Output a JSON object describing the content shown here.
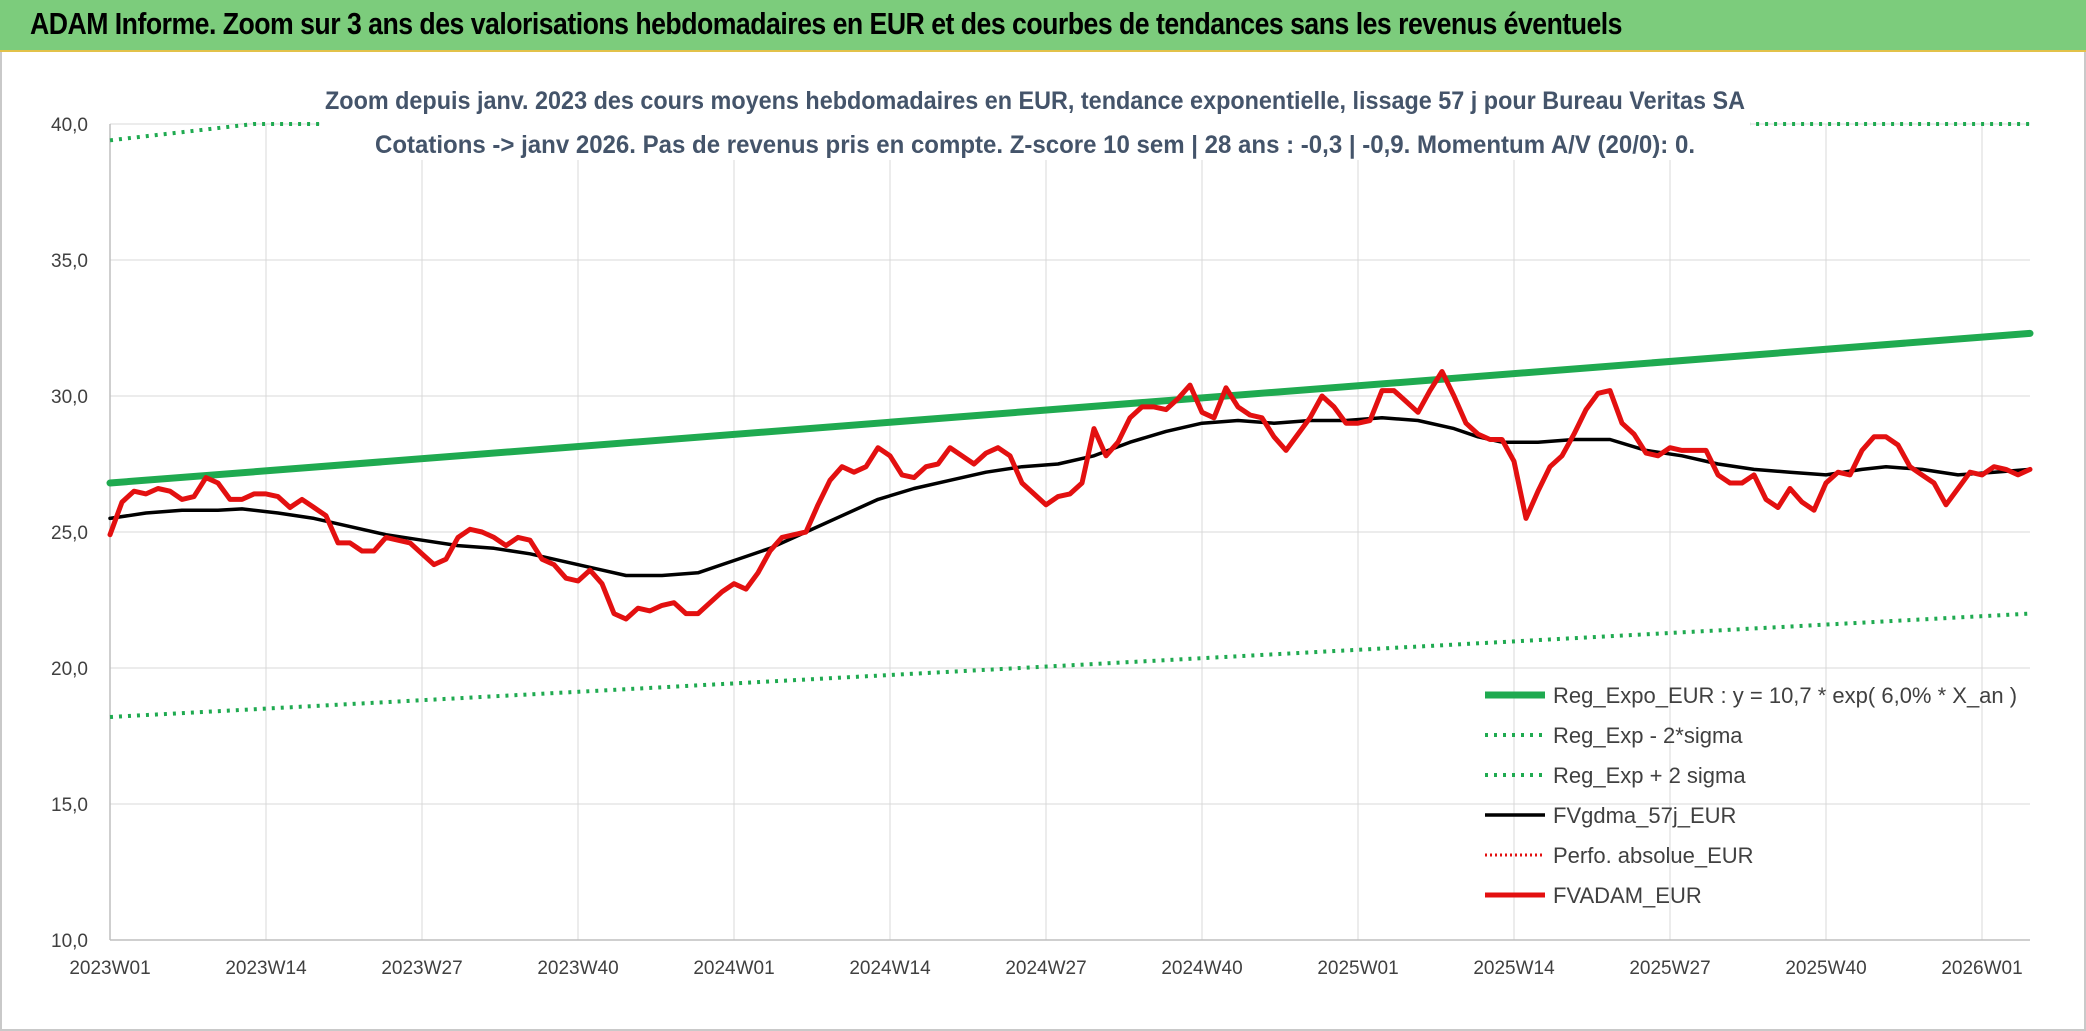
{
  "banner": {
    "title": "ADAM Informe. Zoom sur 3 ans des valorisations hebdomadaires en EUR et des courbes de tendances sans les revenus éventuels"
  },
  "colors": {
    "trend": "#1faa50",
    "band": "#1faa50",
    "smooth": "#000000",
    "perf": "#e31010",
    "price": "#e31010",
    "banner": "#7ccc7c",
    "grid": "#d9d9d9"
  },
  "chart_data": {
    "type": "line",
    "subtitle_lines": [
      "Zoom depuis janv. 2023 des cours moyens hebdomadaires en EUR, tendance exponentielle, lissage 57 j pour Bureau Veritas SA",
      "Cotations -> janv 2026. Pas de revenus pris en compte. Z-score 10 sem | 28 ans : -0,3 | -0,9. Momentum A/V (20/0): 0."
    ],
    "ylim": [
      10,
      40
    ],
    "yticks": [
      "10,0",
      "15,0",
      "20,0",
      "25,0",
      "30,0",
      "35,0",
      "40,0"
    ],
    "ytick_values": [
      10,
      15,
      20,
      25,
      30,
      35,
      40
    ],
    "n_weeks": 160,
    "xticks": [
      {
        "label": "2023W01",
        "week": 0
      },
      {
        "label": "2023W14",
        "week": 13
      },
      {
        "label": "2023W27",
        "week": 26
      },
      {
        "label": "2023W40",
        "week": 39
      },
      {
        "label": "2024W01",
        "week": 52
      },
      {
        "label": "2024W14",
        "week": 65
      },
      {
        "label": "2024W27",
        "week": 78
      },
      {
        "label": "2024W40",
        "week": 91
      },
      {
        "label": "2025W01",
        "week": 104
      },
      {
        "label": "2025W14",
        "week": 117
      },
      {
        "label": "2025W27",
        "week": 130
      },
      {
        "label": "2025W40",
        "week": 143
      },
      {
        "label": "2026W01",
        "week": 156
      }
    ],
    "grid": true,
    "legend_position": "bottom-right",
    "series": [
      {
        "key": "trend",
        "name": "Reg_Expo_EUR : y = 10,7 * exp( 6,0% *  X_an )",
        "style": "solid-thick",
        "points": [
          [
            0,
            26.8
          ],
          [
            160,
            32.3
          ]
        ]
      },
      {
        "key": "lower",
        "name": "Reg_Exp - 2*sigma",
        "style": "dotted",
        "points": [
          [
            0,
            18.2
          ],
          [
            160,
            22.0
          ]
        ]
      },
      {
        "key": "upper",
        "name": "Reg_Exp + 2 sigma",
        "style": "dotted",
        "points": [
          [
            0,
            39.4
          ],
          [
            12,
            40.0
          ],
          [
            17,
            40.0
          ],
          [
            139,
            40.0
          ],
          [
            160,
            40.0
          ]
        ]
      },
      {
        "key": "smooth",
        "name": "FVgdma_57j_EUR",
        "style": "solid",
        "points": [
          [
            0,
            25.5
          ],
          [
            3,
            25.7
          ],
          [
            6,
            25.8
          ],
          [
            9,
            25.8
          ],
          [
            11,
            25.85
          ],
          [
            14,
            25.7
          ],
          [
            17,
            25.5
          ],
          [
            20,
            25.2
          ],
          [
            23,
            24.9
          ],
          [
            26,
            24.7
          ],
          [
            29,
            24.5
          ],
          [
            32,
            24.4
          ],
          [
            35,
            24.2
          ],
          [
            38,
            23.9
          ],
          [
            41,
            23.6
          ],
          [
            43,
            23.4
          ],
          [
            46,
            23.4
          ],
          [
            49,
            23.5
          ],
          [
            51,
            23.8
          ],
          [
            53,
            24.1
          ],
          [
            55,
            24.4
          ],
          [
            58,
            25.0
          ],
          [
            61,
            25.6
          ],
          [
            64,
            26.2
          ],
          [
            67,
            26.6
          ],
          [
            70,
            26.9
          ],
          [
            73,
            27.2
          ],
          [
            76,
            27.4
          ],
          [
            79,
            27.5
          ],
          [
            82,
            27.8
          ],
          [
            85,
            28.3
          ],
          [
            88,
            28.7
          ],
          [
            91,
            29.0
          ],
          [
            94,
            29.1
          ],
          [
            97,
            29.0
          ],
          [
            100,
            29.1
          ],
          [
            103,
            29.1
          ],
          [
            106,
            29.2
          ],
          [
            109,
            29.1
          ],
          [
            112,
            28.8
          ],
          [
            114,
            28.5
          ],
          [
            116,
            28.3
          ],
          [
            119,
            28.3
          ],
          [
            122,
            28.4
          ],
          [
            125,
            28.4
          ],
          [
            128,
            28.0
          ],
          [
            131,
            27.8
          ],
          [
            134,
            27.5
          ],
          [
            137,
            27.3
          ],
          [
            140,
            27.2
          ],
          [
            143,
            27.1
          ],
          [
            146,
            27.3
          ],
          [
            148,
            27.4
          ],
          [
            151,
            27.3
          ],
          [
            154,
            27.1
          ],
          [
            157,
            27.2
          ],
          [
            160,
            27.3
          ]
        ]
      },
      {
        "key": "perf",
        "name": "Perfo. absolue_EUR",
        "style": "dotted-red",
        "points": []
      },
      {
        "key": "price",
        "name": "FVADAM_EUR",
        "style": "solid-thick",
        "points": [
          [
            0,
            24.9
          ],
          [
            1,
            26.1
          ],
          [
            2,
            26.5
          ],
          [
            3,
            26.4
          ],
          [
            4,
            26.6
          ],
          [
            5,
            26.5
          ],
          [
            6,
            26.2
          ],
          [
            7,
            26.3
          ],
          [
            8,
            27.0
          ],
          [
            9,
            26.8
          ],
          [
            10,
            26.2
          ],
          [
            11,
            26.2
          ],
          [
            12,
            26.4
          ],
          [
            13,
            26.4
          ],
          [
            14,
            26.3
          ],
          [
            15,
            25.9
          ],
          [
            16,
            26.2
          ],
          [
            17,
            25.9
          ],
          [
            18,
            25.6
          ],
          [
            19,
            24.6
          ],
          [
            20,
            24.6
          ],
          [
            21,
            24.3
          ],
          [
            22,
            24.3
          ],
          [
            23,
            24.8
          ],
          [
            24,
            24.7
          ],
          [
            25,
            24.6
          ],
          [
            26,
            24.2
          ],
          [
            27,
            23.8
          ],
          [
            28,
            24.0
          ],
          [
            29,
            24.8
          ],
          [
            30,
            25.1
          ],
          [
            31,
            25.0
          ],
          [
            32,
            24.8
          ],
          [
            33,
            24.5
          ],
          [
            34,
            24.8
          ],
          [
            35,
            24.7
          ],
          [
            36,
            24.0
          ],
          [
            37,
            23.8
          ],
          [
            38,
            23.3
          ],
          [
            39,
            23.2
          ],
          [
            40,
            23.6
          ],
          [
            41,
            23.1
          ],
          [
            42,
            22.0
          ],
          [
            43,
            21.8
          ],
          [
            44,
            22.2
          ],
          [
            45,
            22.1
          ],
          [
            46,
            22.3
          ],
          [
            47,
            22.4
          ],
          [
            48,
            22.0
          ],
          [
            49,
            22.0
          ],
          [
            50,
            22.4
          ],
          [
            51,
            22.8
          ],
          [
            52,
            23.1
          ],
          [
            53,
            22.9
          ],
          [
            54,
            23.5
          ],
          [
            55,
            24.3
          ],
          [
            56,
            24.8
          ],
          [
            57,
            24.9
          ],
          [
            58,
            25.0
          ],
          [
            59,
            26.0
          ],
          [
            60,
            26.9
          ],
          [
            61,
            27.4
          ],
          [
            62,
            27.2
          ],
          [
            63,
            27.4
          ],
          [
            64,
            28.1
          ],
          [
            65,
            27.8
          ],
          [
            66,
            27.1
          ],
          [
            67,
            27.0
          ],
          [
            68,
            27.4
          ],
          [
            69,
            27.5
          ],
          [
            70,
            28.1
          ],
          [
            71,
            27.8
          ],
          [
            72,
            27.5
          ],
          [
            73,
            27.9
          ],
          [
            74,
            28.1
          ],
          [
            75,
            27.8
          ],
          [
            76,
            26.8
          ],
          [
            77,
            26.4
          ],
          [
            78,
            26.0
          ],
          [
            79,
            26.3
          ],
          [
            80,
            26.4
          ],
          [
            81,
            26.8
          ],
          [
            82,
            28.8
          ],
          [
            83,
            27.8
          ],
          [
            84,
            28.3
          ],
          [
            85,
            29.2
          ],
          [
            86,
            29.6
          ],
          [
            87,
            29.6
          ],
          [
            88,
            29.5
          ],
          [
            89,
            29.9
          ],
          [
            90,
            30.4
          ],
          [
            91,
            29.4
          ],
          [
            92,
            29.2
          ],
          [
            93,
            30.3
          ],
          [
            94,
            29.6
          ],
          [
            95,
            29.3
          ],
          [
            96,
            29.2
          ],
          [
            97,
            28.5
          ],
          [
            98,
            28.0
          ],
          [
            99,
            28.6
          ],
          [
            100,
            29.2
          ],
          [
            101,
            30.0
          ],
          [
            102,
            29.6
          ],
          [
            103,
            29.0
          ],
          [
            104,
            29.0
          ],
          [
            105,
            29.1
          ],
          [
            106,
            30.2
          ],
          [
            107,
            30.2
          ],
          [
            108,
            29.8
          ],
          [
            109,
            29.4
          ],
          [
            110,
            30.2
          ],
          [
            111,
            30.9
          ],
          [
            112,
            30.0
          ],
          [
            113,
            29.0
          ],
          [
            114,
            28.6
          ],
          [
            115,
            28.4
          ],
          [
            116,
            28.4
          ],
          [
            117,
            27.6
          ],
          [
            118,
            25.5
          ],
          [
            119,
            26.5
          ],
          [
            120,
            27.4
          ],
          [
            121,
            27.8
          ],
          [
            122,
            28.6
          ],
          [
            123,
            29.5
          ],
          [
            124,
            30.1
          ],
          [
            125,
            30.2
          ],
          [
            126,
            29.0
          ],
          [
            127,
            28.6
          ],
          [
            128,
            27.9
          ],
          [
            129,
            27.8
          ],
          [
            130,
            28.1
          ],
          [
            131,
            28.0
          ],
          [
            132,
            28.0
          ],
          [
            133,
            28.0
          ],
          [
            134,
            27.1
          ],
          [
            135,
            26.8
          ],
          [
            136,
            26.8
          ],
          [
            137,
            27.1
          ],
          [
            138,
            26.2
          ],
          [
            139,
            25.9
          ],
          [
            140,
            26.6
          ],
          [
            141,
            26.1
          ],
          [
            142,
            25.8
          ],
          [
            143,
            26.8
          ],
          [
            144,
            27.2
          ],
          [
            145,
            27.1
          ],
          [
            146,
            28.0
          ],
          [
            147,
            28.5
          ],
          [
            148,
            28.5
          ],
          [
            149,
            28.2
          ],
          [
            150,
            27.4
          ],
          [
            151,
            27.1
          ],
          [
            152,
            26.8
          ],
          [
            153,
            26.0
          ],
          [
            154,
            26.6
          ],
          [
            155,
            27.2
          ],
          [
            156,
            27.1
          ],
          [
            157,
            27.4
          ],
          [
            158,
            27.3
          ],
          [
            159,
            27.1
          ],
          [
            160,
            27.3
          ]
        ]
      }
    ]
  }
}
